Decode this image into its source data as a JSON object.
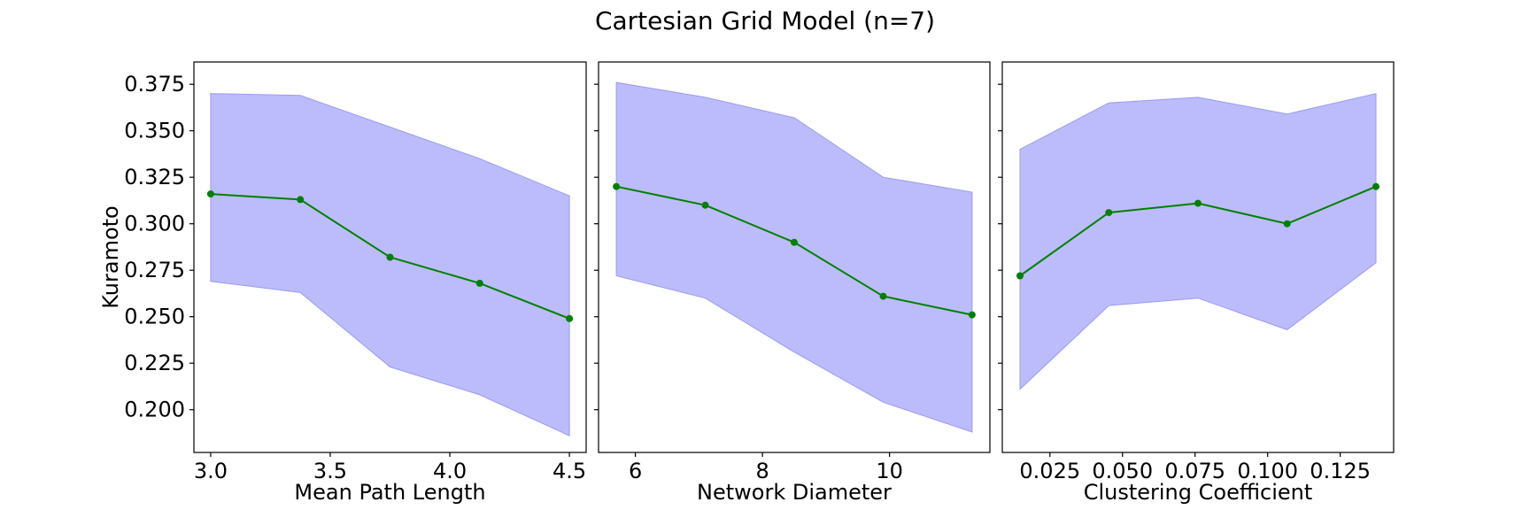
{
  "title": "Cartesian Grid Model (n=7)",
  "chart_data": [
    {
      "type": "line",
      "xlabel": "Mean Path Length",
      "ylabel": "Kuramoto",
      "x": [
        3.0,
        3.375,
        3.75,
        4.125,
        4.5
      ],
      "series": [
        {
          "values": [
            0.316,
            0.313,
            0.282,
            0.268,
            0.249
          ],
          "color": "#008000"
        }
      ],
      "band": {
        "upper": [
          0.37,
          0.369,
          0.352,
          0.335,
          0.315
        ],
        "lower": [
          0.269,
          0.263,
          0.223,
          0.208,
          0.186
        ],
        "color": "#bcbcfc"
      },
      "xlim": [
        2.93,
        4.57
      ],
      "xticks": [
        3.0,
        3.5,
        4.0,
        4.5
      ],
      "xtick_labels": [
        "3.0",
        "3.5",
        "4.0",
        "4.5"
      ],
      "ylim": [
        0.177,
        0.387
      ],
      "yticks": [
        0.2,
        0.225,
        0.25,
        0.275,
        0.3,
        0.325,
        0.35,
        0.375
      ],
      "ytick_labels": [
        "0.200",
        "0.225",
        "0.250",
        "0.275",
        "0.300",
        "0.325",
        "0.350",
        "0.375"
      ]
    },
    {
      "type": "line",
      "xlabel": "Network Diameter",
      "ylabel": "",
      "x": [
        5.7,
        7.1,
        8.5,
        9.9,
        11.3
      ],
      "series": [
        {
          "values": [
            0.32,
            0.31,
            0.29,
            0.261,
            0.251
          ],
          "color": "#008000"
        }
      ],
      "band": {
        "upper": [
          0.376,
          0.368,
          0.357,
          0.325,
          0.317
        ],
        "lower": [
          0.272,
          0.26,
          0.231,
          0.204,
          0.188
        ],
        "color": "#bcbcfc"
      },
      "xlim": [
        5.42,
        11.58
      ],
      "xticks": [
        6,
        8,
        10
      ],
      "xtick_labels": [
        "6",
        "8",
        "10"
      ],
      "ylim": [
        0.177,
        0.387
      ],
      "yticks": [
        0.2,
        0.225,
        0.25,
        0.275,
        0.3,
        0.325,
        0.35,
        0.375
      ],
      "ytick_labels": []
    },
    {
      "type": "line",
      "xlabel": "Clustering Coefficient",
      "ylabel": "",
      "x": [
        0.0147,
        0.0453,
        0.076,
        0.1067,
        0.1373
      ],
      "series": [
        {
          "values": [
            0.272,
            0.306,
            0.311,
            0.3,
            0.32
          ],
          "color": "#008000"
        }
      ],
      "band": {
        "upper": [
          0.34,
          0.365,
          0.368,
          0.359,
          0.37
        ],
        "lower": [
          0.211,
          0.256,
          0.26,
          0.243,
          0.279
        ],
        "color": "#bcbcfc"
      },
      "xlim": [
        0.0086,
        0.1434
      ],
      "xticks": [
        0.025,
        0.05,
        0.075,
        0.1,
        0.125
      ],
      "xtick_labels": [
        "0.025",
        "0.050",
        "0.075",
        "0.100",
        "0.125"
      ],
      "ylim": [
        0.177,
        0.387
      ],
      "yticks": [
        0.2,
        0.225,
        0.25,
        0.275,
        0.3,
        0.325,
        0.35,
        0.375
      ],
      "ytick_labels": []
    }
  ]
}
